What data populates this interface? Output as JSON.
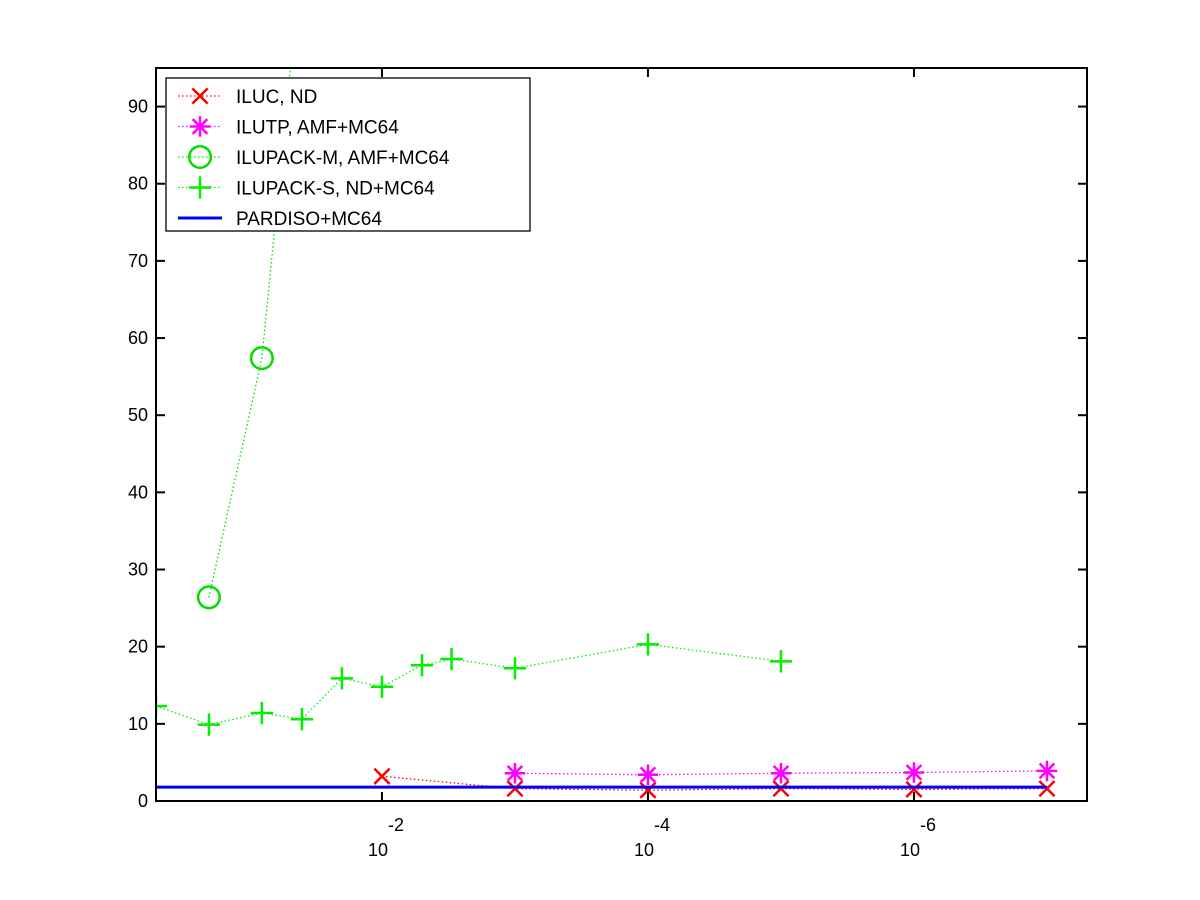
{
  "chart_data": {
    "type": "line",
    "title": "",
    "xlabel": "",
    "ylabel": "",
    "x_scale": "log",
    "x_direction": "reversed",
    "xlim": [
      0.5,
      5e-08
    ],
    "ylim": [
      0,
      95
    ],
    "x_ticks": [
      {
        "value": 0.01,
        "base": "10",
        "exp": "-2"
      },
      {
        "value": 0.0001,
        "base": "10",
        "exp": "-4"
      },
      {
        "value": 1e-06,
        "base": "10",
        "exp": "-6"
      }
    ],
    "y_ticks": [
      "0",
      "10",
      "20",
      "30",
      "40",
      "50",
      "60",
      "70",
      "80",
      "90"
    ],
    "grid": false,
    "legend_position": "top-left",
    "series": [
      {
        "name": "ILUC,  ND",
        "color": "#ff0000",
        "marker": "x",
        "line_style": "dotted",
        "points": [
          [
            0.01,
            3.2
          ],
          [
            0.001,
            1.6
          ],
          [
            0.0001,
            1.4
          ],
          [
            1e-05,
            1.6
          ],
          [
            1e-06,
            1.5
          ],
          [
            1e-07,
            1.6
          ]
        ]
      },
      {
        "name": "ILUTP, AMF+MC64",
        "color": "#ff00ff",
        "marker": "asterisk",
        "line_style": "dotted",
        "points": [
          [
            0.001,
            3.6
          ],
          [
            0.0001,
            3.4
          ],
          [
            1e-05,
            3.6
          ],
          [
            1e-06,
            3.7
          ],
          [
            1e-07,
            3.9
          ]
        ]
      },
      {
        "name": "ILUPACK-M, AMF+MC64",
        "color": "#00dd00",
        "marker": "circle",
        "line_style": "dotted",
        "points": [
          [
            0.2,
            26.4
          ],
          [
            0.08,
            57.4
          ],
          [
            0.04,
            110
          ]
        ]
      },
      {
        "name": "ILUPACK-S, ND+MC64",
        "color": "#00ee00",
        "marker": "plus",
        "line_style": "dotted",
        "points": [
          [
            0.5,
            12.3
          ],
          [
            0.2,
            9.9
          ],
          [
            0.08,
            11.4
          ],
          [
            0.04,
            10.6
          ],
          [
            0.02,
            15.9
          ],
          [
            0.01,
            14.8
          ],
          [
            0.005,
            17.6
          ],
          [
            0.003,
            18.4
          ],
          [
            0.001,
            17.2
          ],
          [
            0.0001,
            20.3
          ],
          [
            1e-05,
            18.1
          ]
        ]
      },
      {
        "name": "PARDISO+MC64",
        "color": "#0000ff",
        "marker": "none",
        "line_style": "solid",
        "points": [
          [
            0.5,
            1.8
          ],
          [
            1e-07,
            1.8
          ]
        ]
      }
    ]
  }
}
